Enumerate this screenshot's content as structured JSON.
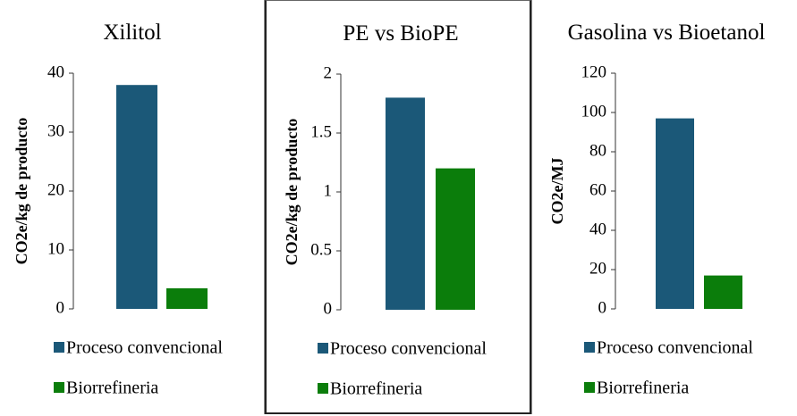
{
  "legend": {
    "items": [
      {
        "label": "Proceso convencional",
        "color": "#1b5878"
      },
      {
        "label": "Biorrefineria",
        "color": "#0b7d0b"
      }
    ]
  },
  "chart_data": [
    {
      "type": "bar",
      "title": "Xilitol",
      "ylabel": "CO2e/kg de producto",
      "xlabel": "",
      "categories": [
        "Proceso convencional",
        "Biorrefineria"
      ],
      "values": [
        38,
        3.5
      ],
      "ylim": [
        0,
        40
      ],
      "yticks": [
        "0",
        "10",
        "20",
        "30",
        "40"
      ],
      "colors": [
        "#1b5878",
        "#0b7d0b"
      ],
      "grid": false,
      "legend": "bottom"
    },
    {
      "type": "bar",
      "title": "PE vs BioPE",
      "ylabel": "CO2e/kg de producto",
      "xlabel": "",
      "categories": [
        "Proceso convencional",
        "Biorrefineria"
      ],
      "values": [
        1.8,
        1.2
      ],
      "ylim": [
        0,
        2
      ],
      "yticks": [
        "0",
        "0.5",
        "1",
        "1.5",
        "2"
      ],
      "colors": [
        "#1b5878",
        "#0b7d0b"
      ],
      "grid": false,
      "legend": "bottom"
    },
    {
      "type": "bar",
      "title": "Gasolina vs Bioetanol",
      "ylabel": "CO2e/MJ",
      "xlabel": "",
      "categories": [
        "Proceso convencional",
        "Biorrefineria"
      ],
      "values": [
        97,
        17
      ],
      "ylim": [
        0,
        120
      ],
      "yticks": [
        "0",
        "20",
        "40",
        "60",
        "80",
        "100",
        "120"
      ],
      "colors": [
        "#1b5878",
        "#0b7d0b"
      ],
      "grid": false,
      "legend": "bottom"
    }
  ]
}
